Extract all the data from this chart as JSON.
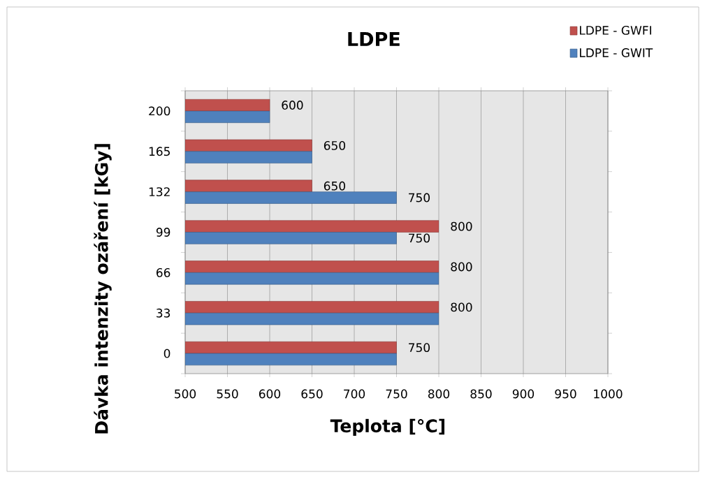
{
  "chart_data": {
    "type": "bar",
    "orientation": "horizontal",
    "title": "LDPE",
    "xlabel": "Teplota [°C]",
    "ylabel": "Dávka intenzity ozáření [kGy]",
    "categories": [
      "200",
      "165",
      "132",
      "99",
      "66",
      "33",
      "0"
    ],
    "series": [
      {
        "name": "LDPE - GWFI",
        "color": "#c0504d",
        "values": [
          600,
          650,
          650,
          800,
          800,
          800,
          750
        ],
        "value_labels": [
          "600",
          "650",
          "650",
          "800",
          "800",
          "800",
          "750"
        ]
      },
      {
        "name": "LDPE - GWIT",
        "color": "#4f81bd",
        "values": [
          600,
          650,
          750,
          750,
          800,
          800,
          750
        ],
        "value_labels": [
          null,
          null,
          "750",
          "750",
          null,
          null,
          null
        ]
      }
    ],
    "xlim": [
      500,
      1000
    ],
    "xticks": [
      500,
      550,
      600,
      650,
      700,
      750,
      800,
      850,
      900,
      950,
      1000
    ],
    "grid": "x",
    "legend": "top right"
  }
}
